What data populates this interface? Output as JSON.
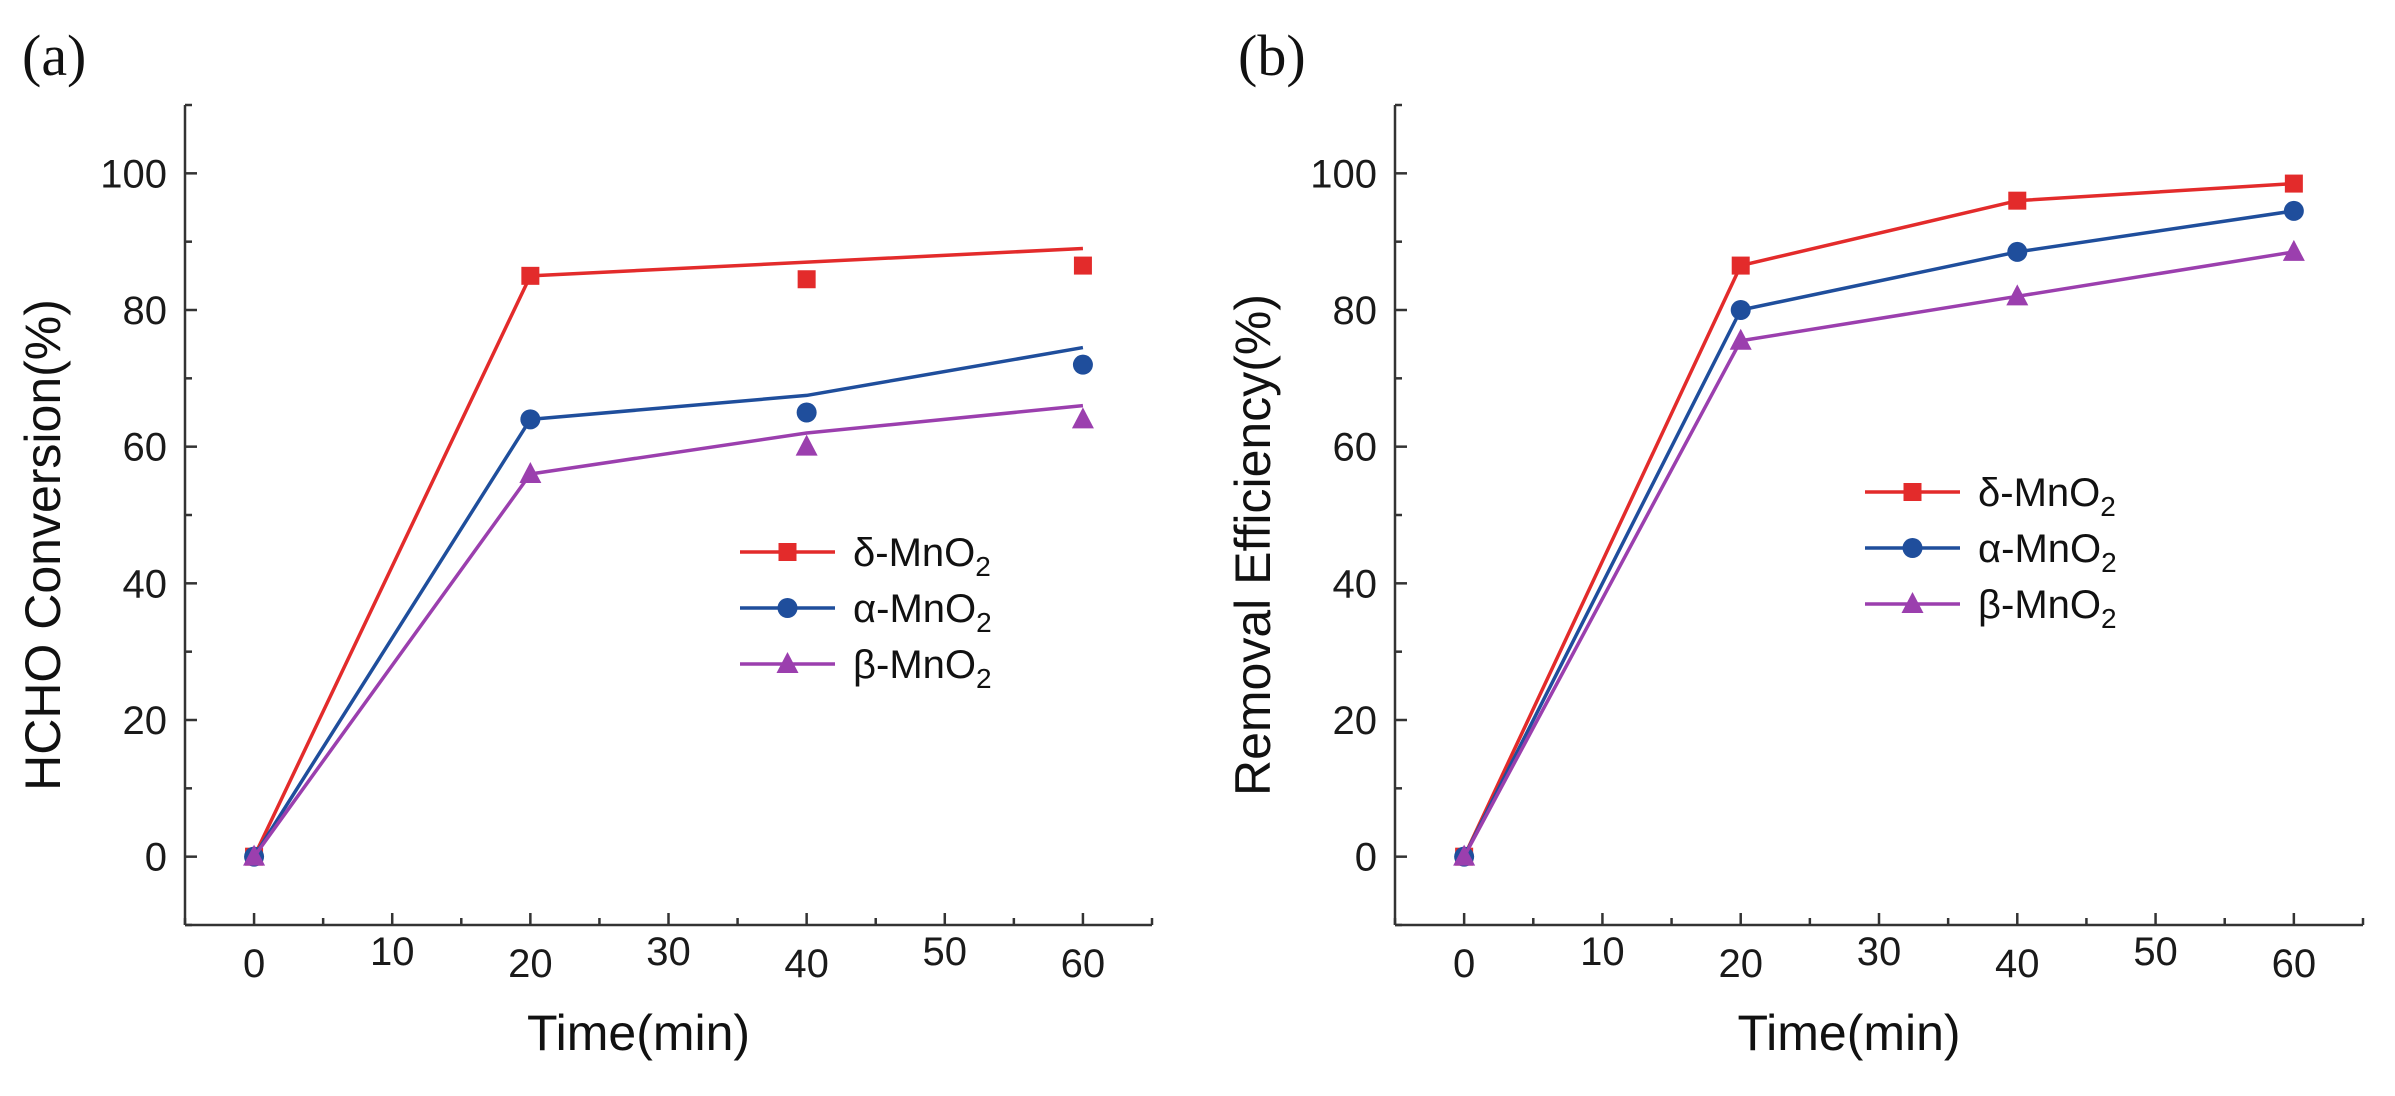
{
  "chart_data": [
    {
      "id": "a",
      "panel_label": "(a)",
      "type": "line",
      "xlabel": "Time(min)",
      "ylabel": "HCHO Conversion(%)",
      "xlim": [
        -5,
        65
      ],
      "ylim": [
        -10,
        110
      ],
      "xticks": [
        0,
        10,
        20,
        30,
        40,
        50,
        60
      ],
      "yticks": [
        0,
        20,
        40,
        60,
        80,
        100
      ],
      "legend_position": "center-right",
      "series": [
        {
          "name": "δ-MnO2",
          "label_main": "δ-MnO",
          "label_sub": "2",
          "color": "#e32b2b",
          "marker": "square",
          "points_x": [
            0,
            20,
            40,
            60
          ],
          "points_y": [
            0,
            85,
            84.5,
            86.5
          ],
          "line_x": [
            0,
            20,
            60
          ],
          "line_y": [
            0,
            85,
            89
          ]
        },
        {
          "name": "α-MnO2",
          "label_main": "α-MnO",
          "label_sub": "2",
          "color": "#1f4e9c",
          "marker": "circle",
          "points_x": [
            0,
            20,
            40,
            60
          ],
          "points_y": [
            0,
            64,
            65,
            72
          ],
          "line_x": [
            0,
            20,
            40,
            60
          ],
          "line_y": [
            0,
            64,
            67.5,
            74.5
          ]
        },
        {
          "name": "β-MnO2",
          "label_main": "β-MnO",
          "label_sub": "2",
          "color": "#9b3fae",
          "marker": "triangle",
          "points_x": [
            0,
            20,
            40,
            60
          ],
          "points_y": [
            0,
            56,
            60,
            64
          ],
          "line_x": [
            0,
            20,
            40,
            60
          ],
          "line_y": [
            0,
            56,
            62,
            66
          ]
        }
      ]
    },
    {
      "id": "b",
      "panel_label": "(b)",
      "type": "line",
      "xlabel": "Time(min)",
      "ylabel": "Removal Efficiency(%)",
      "xlim": [
        -5,
        65
      ],
      "ylim": [
        -10,
        110
      ],
      "xticks": [
        0,
        10,
        20,
        30,
        40,
        50,
        60
      ],
      "yticks": [
        0,
        20,
        40,
        60,
        80,
        100
      ],
      "legend_position": "center-right",
      "series": [
        {
          "name": "δ-MnO2",
          "label_main": "δ-MnO",
          "label_sub": "2",
          "color": "#e32b2b",
          "marker": "square",
          "points_x": [
            0,
            20,
            40,
            60
          ],
          "points_y": [
            0,
            86.5,
            96,
            98.5
          ],
          "line_x": [
            0,
            20,
            40,
            60
          ],
          "line_y": [
            0,
            86.5,
            96,
            98.5
          ]
        },
        {
          "name": "α-MnO2",
          "label_main": "α-MnO",
          "label_sub": "2",
          "color": "#1f4e9c",
          "marker": "circle",
          "points_x": [
            0,
            20,
            40,
            60
          ],
          "points_y": [
            0,
            80,
            88.5,
            94.5
          ],
          "line_x": [
            0,
            20,
            40,
            60
          ],
          "line_y": [
            0,
            80,
            88.5,
            94.5
          ]
        },
        {
          "name": "β-MnO2",
          "label_main": "β-MnO",
          "label_sub": "2",
          "color": "#9b3fae",
          "marker": "triangle",
          "points_x": [
            0,
            20,
            40,
            60
          ],
          "points_y": [
            0,
            75.5,
            82,
            88.5
          ],
          "line_x": [
            0,
            20,
            40,
            60
          ],
          "line_y": [
            0,
            75.5,
            82,
            88.5
          ]
        }
      ]
    }
  ]
}
